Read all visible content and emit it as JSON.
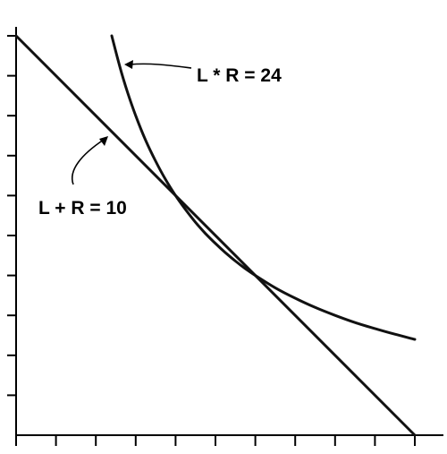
{
  "chart_data": {
    "type": "line",
    "title": "",
    "xlabel": "",
    "ylabel": "",
    "xlim": [
      0,
      10
    ],
    "ylim": [
      0,
      10
    ],
    "x_ticks": [
      0,
      1,
      2,
      3,
      4,
      5,
      6,
      7,
      8,
      9,
      10
    ],
    "y_ticks": [
      0,
      1,
      2,
      3,
      4,
      5,
      6,
      7,
      8,
      9,
      10
    ],
    "tick_labels_shown": false,
    "grid": false,
    "series": [
      {
        "name": "L + R = 10",
        "x": [
          0,
          10
        ],
        "y": [
          10,
          0
        ]
      },
      {
        "name": "L * R = 24",
        "x": [
          2.4,
          2.6,
          2.8,
          3,
          3.25,
          3.5,
          3.75,
          4,
          4.25,
          4.5,
          4.75,
          5,
          5.25,
          5.5,
          5.75,
          6,
          6.5,
          7,
          7.5,
          8,
          8.5,
          9,
          9.5,
          10
        ],
        "y": [
          10,
          9.23,
          8.57,
          8,
          7.38,
          6.86,
          6.4,
          6,
          5.65,
          5.33,
          5.05,
          4.8,
          4.57,
          4.36,
          4.17,
          4,
          3.69,
          3.43,
          3.2,
          3,
          2.82,
          2.67,
          2.53,
          2.4
        ]
      }
    ],
    "annotations": [
      {
        "text": "L * R = 24",
        "series": "L * R = 24"
      },
      {
        "text": "L + R = 10",
        "series": "L + R = 10"
      }
    ],
    "colors": {
      "line": "#111111",
      "axis": "#000000",
      "background": "#ffffff"
    }
  }
}
